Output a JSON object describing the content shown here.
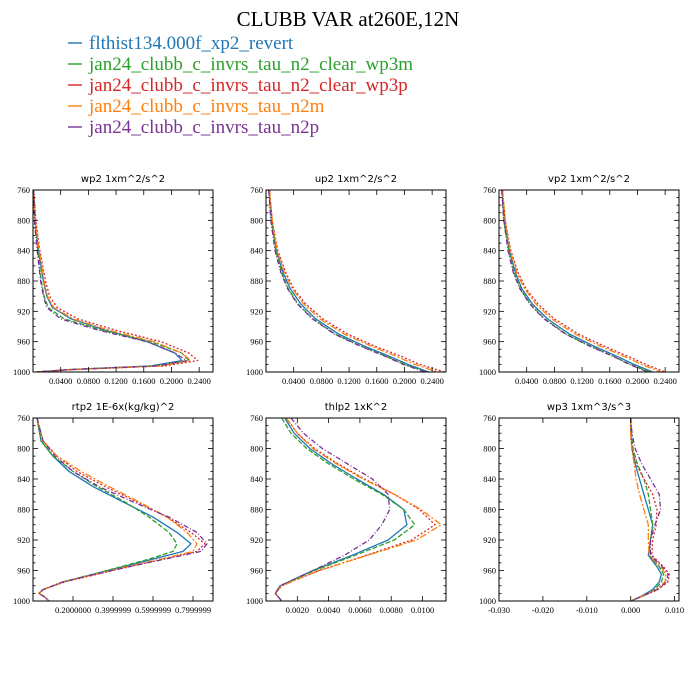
{
  "figure": {
    "title": "CLUBB VAR at260E,12N"
  },
  "legend": [
    {
      "name": "flthist134.000f_xp2_revert",
      "color": "#1f77b4"
    },
    {
      "name": "jan24_clubb_c_invrs_tau_n2_clear_wp3m",
      "color": "#2ca02c"
    },
    {
      "name": "jan24_clubb_c_invrs_tau_n2_clear_wp3p",
      "color": "#d62728"
    },
    {
      "name": "jan24_clubb_c_invrs_tau_n2m",
      "color": "#ff7f0e"
    },
    {
      "name": "jan24_clubb_c_invrs_tau_n2p",
      "color": "#7b3294"
    }
  ],
  "chart_data": [
    {
      "type": "line",
      "title": "wp2   1xm^2/s^2",
      "ylim": [
        760,
        1000
      ],
      "yreverse": true,
      "yticks": [
        "760",
        "800",
        "840",
        "880",
        "920",
        "960",
        "1000"
      ],
      "xlim": [
        0,
        0.26
      ],
      "xticks": [
        {
          "v": 0.04,
          "label": "0.0400"
        },
        {
          "v": 0.08,
          "label": "0.0800"
        },
        {
          "v": 0.12,
          "label": "0.1200"
        },
        {
          "v": 0.16,
          "label": "0.1600"
        },
        {
          "v": 0.2,
          "label": "0.2000"
        },
        {
          "v": 0.24,
          "label": "0.2400"
        }
      ],
      "y": [
        760,
        800,
        840,
        880,
        900,
        915,
        930,
        945,
        960,
        975,
        985,
        992,
        997,
        1000
      ],
      "series": [
        {
          "values": [
            0.001,
            0.003,
            0.008,
            0.015,
            0.02,
            0.028,
            0.055,
            0.105,
            0.165,
            0.205,
            0.215,
            0.17,
            0.05,
            0.005
          ]
        },
        {
          "values": [
            0.001,
            0.003,
            0.007,
            0.012,
            0.016,
            0.022,
            0.045,
            0.1,
            0.17,
            0.215,
            0.225,
            0.18,
            0.05,
            0.005
          ]
        },
        {
          "values": [
            0.001,
            0.004,
            0.01,
            0.018,
            0.024,
            0.035,
            0.065,
            0.12,
            0.185,
            0.225,
            0.238,
            0.19,
            0.055,
            0.005
          ]
        },
        {
          "values": [
            0.001,
            0.003,
            0.009,
            0.016,
            0.021,
            0.03,
            0.058,
            0.11,
            0.175,
            0.215,
            0.228,
            0.185,
            0.052,
            0.005
          ]
        },
        {
          "values": [
            0.001,
            0.002,
            0.006,
            0.011,
            0.015,
            0.02,
            0.04,
            0.095,
            0.165,
            0.205,
            0.222,
            0.178,
            0.05,
            0.005
          ]
        }
      ]
    },
    {
      "type": "line",
      "title": "up2   1xm^2/s^2",
      "ylim": [
        760,
        1000
      ],
      "yreverse": true,
      "yticks": [
        "760",
        "800",
        "840",
        "880",
        "920",
        "960",
        "1000"
      ],
      "xlim": [
        0,
        0.26
      ],
      "xticks": [
        {
          "v": 0.04,
          "label": "0.0400"
        },
        {
          "v": 0.08,
          "label": "0.0800"
        },
        {
          "v": 0.12,
          "label": "0.1200"
        },
        {
          "v": 0.16,
          "label": "0.1600"
        },
        {
          "v": 0.2,
          "label": "0.2000"
        },
        {
          "v": 0.24,
          "label": "0.2400"
        }
      ],
      "y": [
        760,
        800,
        840,
        870,
        890,
        910,
        930,
        950,
        965,
        980,
        990,
        1000
      ],
      "series": [
        {
          "values": [
            0.004,
            0.008,
            0.015,
            0.025,
            0.035,
            0.05,
            0.072,
            0.105,
            0.14,
            0.18,
            0.205,
            0.235
          ]
        },
        {
          "values": [
            0.004,
            0.008,
            0.014,
            0.023,
            0.032,
            0.046,
            0.068,
            0.1,
            0.135,
            0.175,
            0.2,
            0.232
          ]
        },
        {
          "values": [
            0.005,
            0.009,
            0.017,
            0.029,
            0.04,
            0.057,
            0.082,
            0.118,
            0.155,
            0.197,
            0.222,
            0.258
          ]
        },
        {
          "values": [
            0.005,
            0.009,
            0.016,
            0.027,
            0.038,
            0.054,
            0.078,
            0.113,
            0.15,
            0.19,
            0.215,
            0.248
          ]
        },
        {
          "values": [
            0.004,
            0.007,
            0.013,
            0.022,
            0.031,
            0.045,
            0.067,
            0.099,
            0.134,
            0.174,
            0.198,
            0.23
          ]
        }
      ]
    },
    {
      "type": "line",
      "title": "vp2   1xm^2/s^2",
      "ylim": [
        760,
        1000
      ],
      "yreverse": true,
      "yticks": [
        "760",
        "800",
        "840",
        "880",
        "920",
        "960",
        "1000"
      ],
      "xlim": [
        0,
        0.26
      ],
      "xticks": [
        {
          "v": 0.04,
          "label": "0.0400"
        },
        {
          "v": 0.08,
          "label": "0.0800"
        },
        {
          "v": 0.12,
          "label": "0.1200"
        },
        {
          "v": 0.16,
          "label": "0.1600"
        },
        {
          "v": 0.2,
          "label": "0.2000"
        },
        {
          "v": 0.24,
          "label": "0.2400"
        }
      ],
      "y": [
        760,
        800,
        840,
        870,
        890,
        910,
        930,
        950,
        965,
        980,
        990,
        1000
      ],
      "series": [
        {
          "values": [
            0.004,
            0.008,
            0.015,
            0.024,
            0.033,
            0.048,
            0.07,
            0.102,
            0.135,
            0.172,
            0.195,
            0.222
          ]
        },
        {
          "values": [
            0.004,
            0.007,
            0.014,
            0.022,
            0.031,
            0.045,
            0.066,
            0.097,
            0.13,
            0.167,
            0.19,
            0.218
          ]
        },
        {
          "values": [
            0.005,
            0.009,
            0.017,
            0.028,
            0.039,
            0.056,
            0.08,
            0.115,
            0.15,
            0.188,
            0.212,
            0.24
          ]
        },
        {
          "values": [
            0.005,
            0.009,
            0.016,
            0.026,
            0.037,
            0.053,
            0.076,
            0.11,
            0.144,
            0.182,
            0.206,
            0.234
          ]
        },
        {
          "values": [
            0.004,
            0.007,
            0.013,
            0.021,
            0.03,
            0.044,
            0.065,
            0.096,
            0.129,
            0.166,
            0.188,
            0.215
          ]
        }
      ]
    },
    {
      "type": "line",
      "title": "rtp2   1E-6x(kg/kg)^2",
      "ylim": [
        760,
        1000
      ],
      "yreverse": true,
      "yticks": [
        "760",
        "800",
        "840",
        "880",
        "920",
        "960",
        "1000"
      ],
      "xlim": [
        0,
        0.9
      ],
      "xticks": [
        {
          "v": 0.2,
          "label": "0.2000000"
        },
        {
          "v": 0.4,
          "label": "0.3999999"
        },
        {
          "v": 0.6,
          "label": "0.5999999"
        },
        {
          "v": 0.8,
          "label": "0.7999999"
        }
      ],
      "xticks_visual_only": [
        0.4,
        0.6,
        0.8
      ],
      "y": [
        760,
        790,
        810,
        830,
        850,
        870,
        890,
        910,
        925,
        935,
        945,
        955,
        965,
        975,
        985,
        990,
        995,
        1000
      ],
      "series": [
        {
          "values": [
            0.02,
            0.04,
            0.1,
            0.18,
            0.3,
            0.45,
            0.6,
            0.72,
            0.79,
            0.75,
            0.6,
            0.45,
            0.3,
            0.15,
            0.05,
            0.03,
            0.06,
            0.08
          ]
        },
        {
          "values": [
            0.02,
            0.04,
            0.1,
            0.2,
            0.32,
            0.46,
            0.58,
            0.68,
            0.72,
            0.7,
            0.58,
            0.44,
            0.3,
            0.15,
            0.05,
            0.03,
            0.06,
            0.08
          ]
        },
        {
          "values": [
            0.02,
            0.05,
            0.12,
            0.22,
            0.36,
            0.52,
            0.67,
            0.79,
            0.86,
            0.82,
            0.65,
            0.48,
            0.32,
            0.16,
            0.05,
            0.03,
            0.06,
            0.08
          ]
        },
        {
          "values": [
            0.02,
            0.05,
            0.12,
            0.24,
            0.38,
            0.53,
            0.67,
            0.77,
            0.82,
            0.8,
            0.64,
            0.47,
            0.31,
            0.15,
            0.05,
            0.03,
            0.06,
            0.08
          ]
        },
        {
          "values": [
            0.02,
            0.05,
            0.11,
            0.2,
            0.33,
            0.5,
            0.68,
            0.82,
            0.87,
            0.84,
            0.66,
            0.48,
            0.31,
            0.15,
            0.05,
            0.03,
            0.06,
            0.08
          ]
        }
      ]
    },
    {
      "type": "line",
      "title": "thlp2   1xK^2",
      "ylim": [
        760,
        1000
      ],
      "yreverse": true,
      "yticks": [
        "760",
        "800",
        "840",
        "880",
        "920",
        "960",
        "1000"
      ],
      "xlim": [
        0,
        0.0115
      ],
      "xticks": [
        {
          "v": 0.002,
          "label": "0.0020"
        },
        {
          "v": 0.004,
          "label": "0.0040"
        },
        {
          "v": 0.006,
          "label": "0.0060"
        },
        {
          "v": 0.008,
          "label": "0.0080"
        },
        {
          "v": 0.01,
          "label": "0.0100"
        }
      ],
      "y": [
        760,
        780,
        800,
        820,
        840,
        860,
        880,
        900,
        920,
        940,
        960,
        980,
        990,
        1000
      ],
      "series": [
        {
          "values": [
            0.0012,
            0.0018,
            0.0028,
            0.0042,
            0.0058,
            0.0075,
            0.0088,
            0.009,
            0.0078,
            0.0055,
            0.003,
            0.0009,
            0.0006,
            0.001
          ]
        },
        {
          "values": [
            0.001,
            0.0016,
            0.0026,
            0.004,
            0.0056,
            0.0074,
            0.0088,
            0.0095,
            0.0082,
            0.0057,
            0.0031,
            0.0009,
            0.0006,
            0.001
          ]
        },
        {
          "values": [
            0.0013,
            0.002,
            0.0031,
            0.0046,
            0.0063,
            0.0082,
            0.0098,
            0.0108,
            0.0093,
            0.0064,
            0.0034,
            0.001,
            0.0006,
            0.001
          ]
        },
        {
          "values": [
            0.0013,
            0.002,
            0.003,
            0.0045,
            0.0062,
            0.0082,
            0.0099,
            0.0112,
            0.0096,
            0.0065,
            0.0034,
            0.001,
            0.0006,
            0.001
          ]
        },
        {
          "values": [
            0.0016,
            0.0024,
            0.0036,
            0.0052,
            0.0068,
            0.0078,
            0.0079,
            0.0074,
            0.0066,
            0.005,
            0.003,
            0.0009,
            0.0006,
            0.001
          ]
        }
      ]
    },
    {
      "type": "line",
      "title": "wp3   1xm^3/s^3",
      "ylim": [
        760,
        1000
      ],
      "yreverse": true,
      "yticks": [
        "760",
        "800",
        "840",
        "880",
        "920",
        "960",
        "1000"
      ],
      "xlim": [
        -0.03,
        0.011
      ],
      "xticks": [
        {
          "v": -0.03,
          "label": "-0.030"
        },
        {
          "v": -0.02,
          "label": "-0.020"
        },
        {
          "v": -0.01,
          "label": "-0.010"
        },
        {
          "v": 0,
          "label": "0.000"
        },
        {
          "v": 0.01,
          "label": "0.010"
        }
      ],
      "y": [
        760,
        780,
        800,
        820,
        840,
        860,
        880,
        900,
        920,
        940,
        955,
        965,
        975,
        985,
        995,
        1000
      ],
      "series": [
        {
          "values": [
            0.0,
            0.0,
            0.0003,
            0.001,
            0.002,
            0.003,
            0.004,
            0.005,
            0.0045,
            0.004,
            0.006,
            0.007,
            0.0065,
            0.005,
            0.002,
            0.0
          ]
        },
        {
          "values": [
            0.0,
            0.0002,
            0.0005,
            0.0015,
            0.003,
            0.004,
            0.0045,
            0.005,
            0.0045,
            0.0042,
            0.0065,
            0.0075,
            0.007,
            0.0055,
            0.002,
            0.0
          ]
        },
        {
          "values": [
            0.0,
            0.0001,
            0.0003,
            0.0012,
            0.003,
            0.005,
            0.006,
            0.0058,
            0.005,
            0.0048,
            0.0075,
            0.0088,
            0.0085,
            0.0062,
            0.0022,
            0.0
          ]
        },
        {
          "values": [
            0.0,
            0.0,
            0.0002,
            0.0008,
            0.0012,
            0.002,
            0.003,
            0.004,
            0.004,
            0.0042,
            0.0068,
            0.008,
            0.0078,
            0.0058,
            0.0021,
            0.0
          ]
        },
        {
          "values": [
            0.0,
            0.0003,
            0.001,
            0.0025,
            0.0045,
            0.0065,
            0.0068,
            0.0055,
            0.0045,
            0.0045,
            0.0072,
            0.0085,
            0.0082,
            0.006,
            0.0021,
            0.0
          ]
        }
      ]
    }
  ]
}
